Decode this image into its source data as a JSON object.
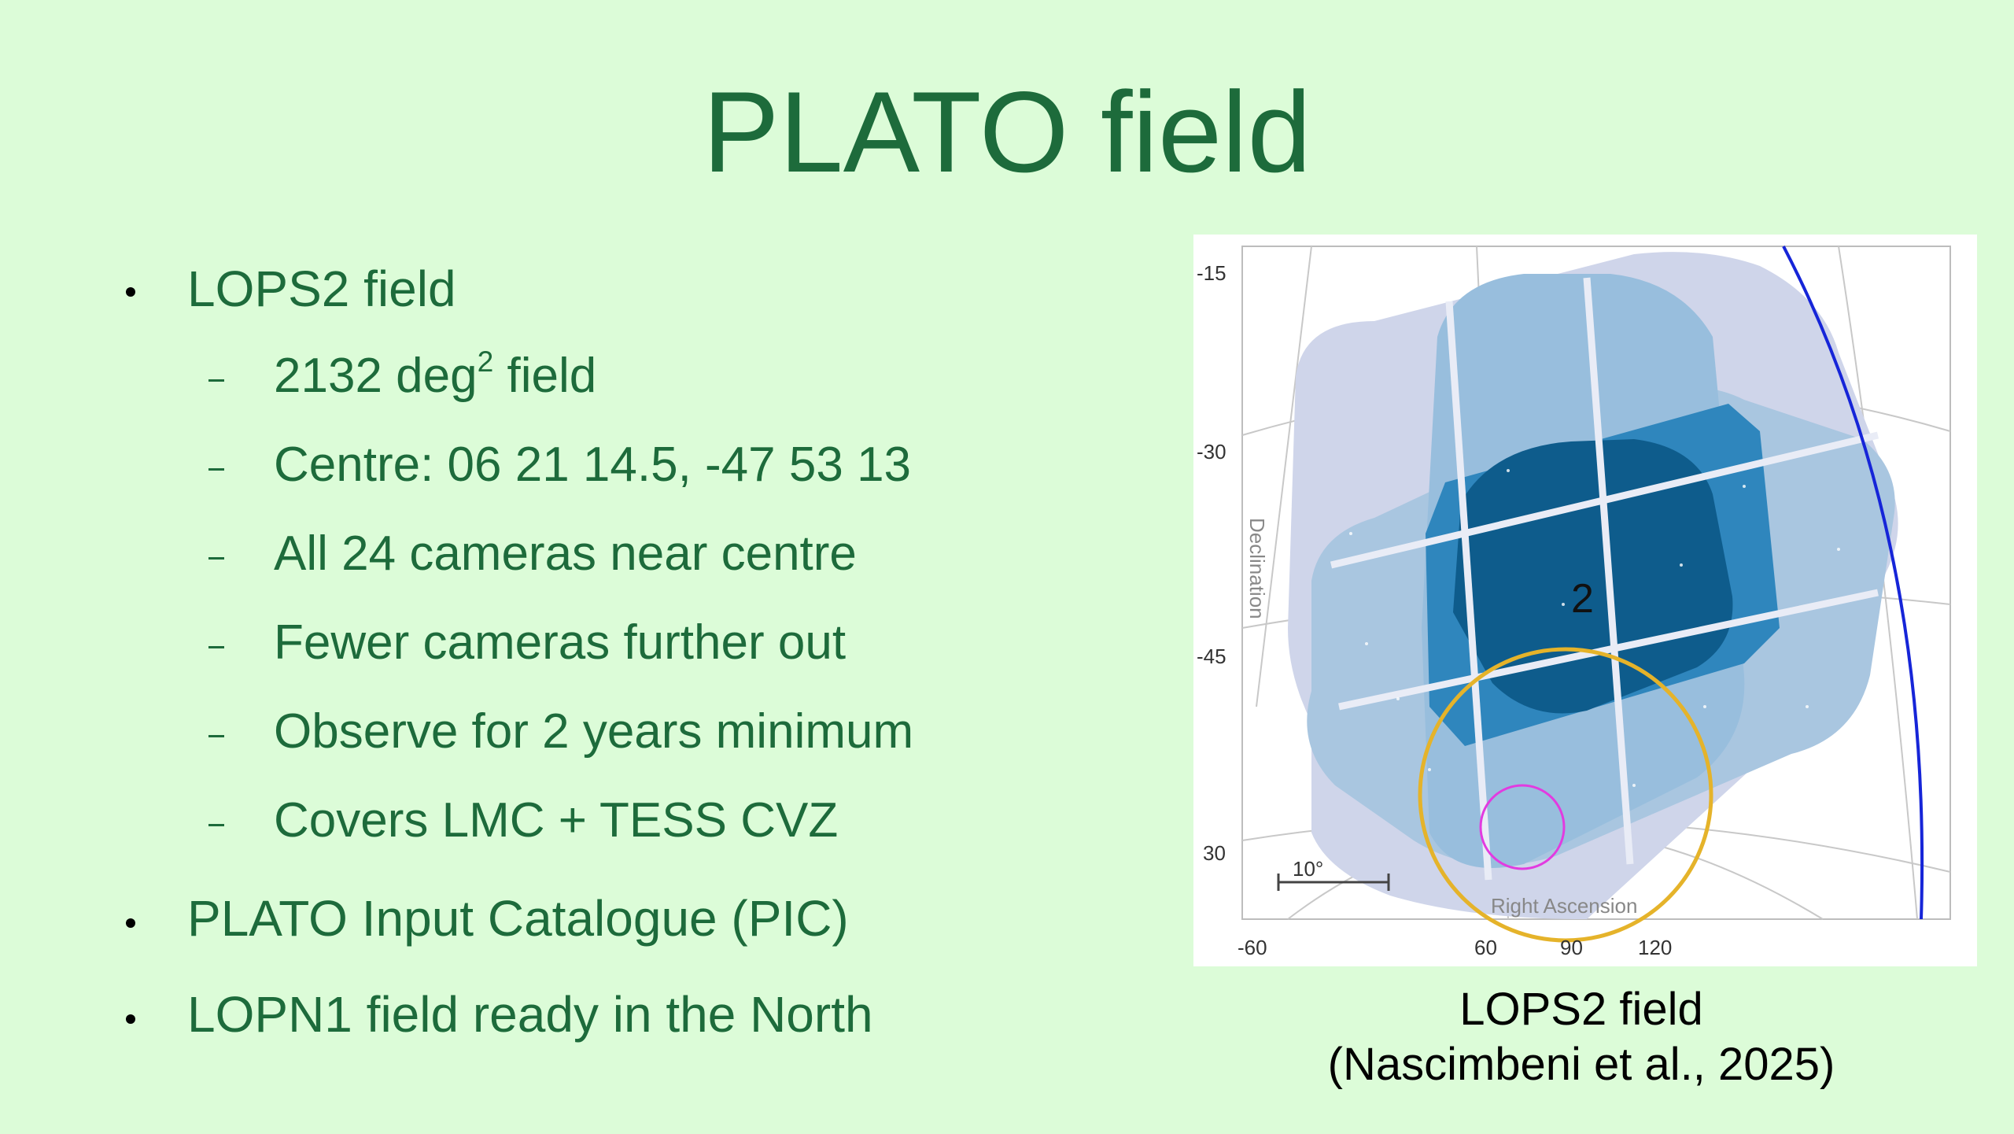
{
  "slide": {
    "title": "PLATO field",
    "bullets": [
      {
        "text": "LOPS2 field",
        "children": [
          {
            "pre": "2132 deg",
            "sup": "2",
            "post": " field"
          },
          {
            "text": "Centre: 06 21 14.5, -47 53 13"
          },
          {
            "text": "All 24 cameras near centre"
          },
          {
            "text": "Fewer cameras further out"
          },
          {
            "text": "Observe for 2 years minimum"
          },
          {
            "text": "Covers LMC + TESS CVZ"
          }
        ]
      },
      {
        "text": "PLATO Input Catalogue (PIC)"
      },
      {
        "text": "LOPN1 field ready in the North"
      }
    ]
  },
  "figure": {
    "dec_ticks": [
      "-15",
      "-30",
      "-45",
      "30"
    ],
    "ra_ticks": [
      "-60",
      "60",
      "90",
      "120"
    ],
    "dec_axis_label": "Declination",
    "ra_axis_label": "Right Ascension",
    "scale_bar_label": "10°",
    "region_label": "2",
    "caption_line1": "LOPS2 field",
    "caption_line2": "(Nascimbeni et al., 2025)",
    "colors": {
      "outer_field": "#cfd5ea",
      "mid_field": "#a9c6e0",
      "inner_field": "#2f86bd",
      "core_field": "#0e5c8c",
      "tess_cvz_circle": "#e5b32a",
      "lmc_circle": "#e23be0",
      "ecliptic_line": "#1625d8"
    }
  }
}
